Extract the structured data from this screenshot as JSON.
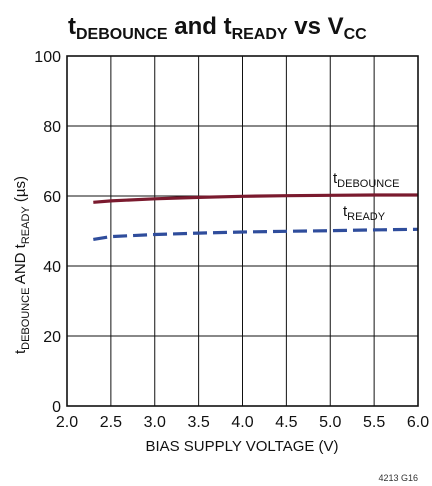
{
  "title": {
    "part1_main": "t",
    "part1_sub": "DEBOUNCE",
    "part2": " and t",
    "part2_sub": "READY",
    "part3": " vs V",
    "part3_sub": "CC"
  },
  "figure_code": "4213 G16",
  "chart_data": {
    "type": "line",
    "x_ticks": [
      "2.0",
      "2.5",
      "3.0",
      "3.5",
      "4.0",
      "4.5",
      "5.0",
      "5.5",
      "6.0"
    ],
    "y_ticks": [
      "0",
      "20",
      "40",
      "60",
      "80",
      "100"
    ],
    "xlim": [
      2.0,
      6.0
    ],
    "ylim": [
      0,
      100
    ],
    "grid": true,
    "xlabel": "BIAS SUPPLY VOLTAGE (V)",
    "ylabel": {
      "t1": "t",
      "s1": "DEBOUNCE",
      "t2": " AND t",
      "s2": "READY",
      "t3": " (µs)"
    },
    "series": [
      {
        "label_main": "t",
        "label_sub": "DEBOUNCE",
        "color": "#7a1a2e",
        "dash": "solid",
        "x": [
          2.3,
          2.5,
          3.0,
          3.5,
          4.0,
          4.5,
          5.0,
          5.5,
          6.0
        ],
        "y": [
          58.2,
          58.6,
          59.2,
          59.6,
          59.9,
          60.1,
          60.2,
          60.3,
          60.3
        ]
      },
      {
        "label_main": "t",
        "label_sub": "READY",
        "color": "#2f4d9c",
        "dash": "dashed",
        "x": [
          2.3,
          2.5,
          3.0,
          3.5,
          4.0,
          4.5,
          5.0,
          5.5,
          6.0
        ],
        "y": [
          47.6,
          48.4,
          49.0,
          49.4,
          49.7,
          49.9,
          50.1,
          50.3,
          50.5
        ]
      }
    ]
  }
}
